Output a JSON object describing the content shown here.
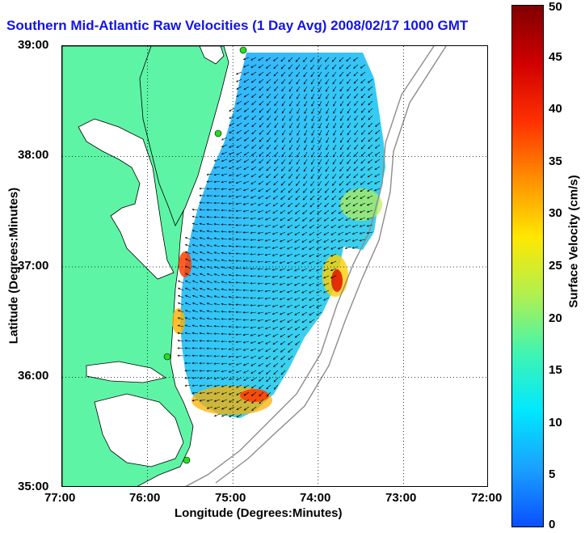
{
  "title": "Southern Mid-Atlantic Raw Velocities (1 Day Avg) 2008/02/17 1000 GMT",
  "map": {
    "xlabel": "Longitude (Degrees:Minutes)",
    "ylabel": "Latitude (Degrees:Minutes)",
    "x_ticks": [
      "77:00",
      "76:00",
      "75:00",
      "74:00",
      "73:00",
      "72:00"
    ],
    "y_ticks": [
      "39:00",
      "38:00",
      "37:00",
      "36:00",
      "35:00"
    ],
    "lon_range": [
      -77,
      -72
    ],
    "lat_range": [
      35,
      39
    ],
    "grid": "dotted",
    "land_color": "#5df5a5",
    "water_color": "#ffffff",
    "coast_color": "#000000",
    "bathymetry_color": "#8c8c8c",
    "vector_color": "#000000",
    "station_color": "#22dd22"
  },
  "colorbar": {
    "label": "Surface Velocity (cm/s)",
    "ticks": [
      "0",
      "5",
      "10",
      "15",
      "20",
      "25",
      "30",
      "35",
      "40",
      "45",
      "50"
    ],
    "range": [
      0,
      50
    ],
    "colors": [
      "#0a50ff",
      "#1aa0ff",
      "#00e8ff",
      "#40f5b0",
      "#b0f050",
      "#ffe800",
      "#ff9000",
      "#ff3000",
      "#d00000",
      "#800000"
    ]
  }
}
